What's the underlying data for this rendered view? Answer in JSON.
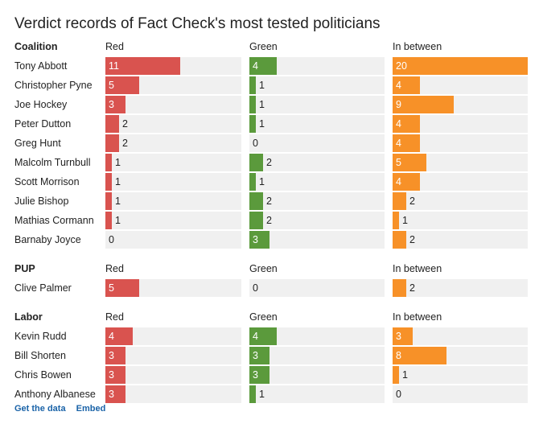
{
  "chart_data": {
    "type": "bar",
    "title": "Verdict records of Fact Check's most tested politicians",
    "columns": [
      "Red",
      "Green",
      "In between"
    ],
    "colors": {
      "Red": "#d9534f",
      "Green": "#5b9a3c",
      "In between": "#f79128",
      "track": "#f0f0f0"
    },
    "xlim": [
      0,
      20
    ],
    "groups": [
      {
        "name": "Coalition",
        "rows": [
          {
            "name": "Tony Abbott",
            "values": [
              11,
              4,
              20
            ]
          },
          {
            "name": "Christopher Pyne",
            "values": [
              5,
              1,
              4
            ]
          },
          {
            "name": "Joe Hockey",
            "values": [
              3,
              1,
              9
            ]
          },
          {
            "name": "Peter Dutton",
            "values": [
              2,
              1,
              4
            ]
          },
          {
            "name": "Greg Hunt",
            "values": [
              2,
              0,
              4
            ]
          },
          {
            "name": "Malcolm Turnbull",
            "values": [
              1,
              2,
              5
            ]
          },
          {
            "name": "Scott Morrison",
            "values": [
              1,
              1,
              4
            ]
          },
          {
            "name": "Julie Bishop",
            "values": [
              1,
              2,
              2
            ]
          },
          {
            "name": "Mathias Cormann",
            "values": [
              1,
              2,
              1
            ]
          },
          {
            "name": "Barnaby Joyce",
            "values": [
              0,
              3,
              2
            ]
          }
        ]
      },
      {
        "name": "PUP",
        "rows": [
          {
            "name": "Clive Palmer",
            "values": [
              5,
              0,
              2
            ]
          }
        ]
      },
      {
        "name": "Labor",
        "rows": [
          {
            "name": "Kevin Rudd",
            "values": [
              4,
              4,
              3
            ]
          },
          {
            "name": "Bill Shorten",
            "values": [
              3,
              3,
              8
            ]
          },
          {
            "name": "Chris Bowen",
            "values": [
              3,
              3,
              1
            ]
          },
          {
            "name": "Anthony Albanese",
            "values": [
              3,
              1,
              0
            ]
          }
        ]
      }
    ]
  },
  "footer": {
    "get_data": "Get the data",
    "embed": "Embed"
  }
}
